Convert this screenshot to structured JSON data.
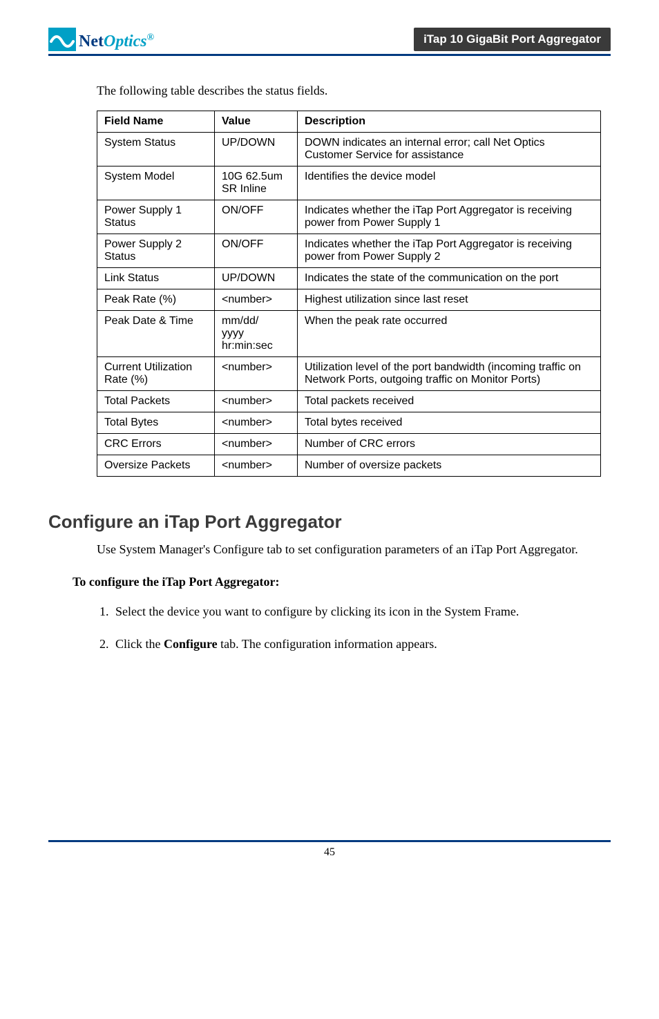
{
  "header": {
    "logo_net": "Net",
    "logo_optics": "Optics",
    "logo_reg": "®",
    "title_pill": "iTap 10 GigaBit Port Aggregator"
  },
  "intro_text": "The following table describes the status fields.",
  "table": {
    "headers": [
      "Field Name",
      "Value",
      "Description"
    ],
    "rows": [
      [
        "System Status",
        "UP/DOWN",
        "DOWN indicates an internal error; call Net Optics Customer Service for assistance"
      ],
      [
        "System Model",
        "10G 62.5um SR Inline",
        "Identifies the device model"
      ],
      [
        "Power Supply 1 Status",
        "ON/OFF",
        "Indicates whether the iTap Port Aggregator is receiving power from Power Supply 1"
      ],
      [
        "Power Supply 2 Status",
        "ON/OFF",
        "Indicates whether the iTap Port Aggregator is receiving power from Power Supply 2"
      ],
      [
        "Link Status",
        "UP/DOWN",
        "Indicates the state of the communication on the port"
      ],
      [
        "Peak Rate (%)",
        "<number>",
        "Highest utilization since last reset"
      ],
      [
        "Peak Date & Time",
        "mm/dd/\nyyyy\nhr:min:sec",
        "When the peak rate occurred"
      ],
      [
        "Current Utilization Rate (%)",
        "<number>",
        "Utilization level of the port bandwidth (incoming traffic on Network Ports, outgoing traffic on Monitor Ports)"
      ],
      [
        "Total Packets",
        "<number>",
        "Total packets received"
      ],
      [
        "Total Bytes",
        "<number>",
        "Total bytes received"
      ],
      [
        "CRC Errors",
        "<number>",
        "Number of CRC errors"
      ],
      [
        "Oversize Packets",
        "<number>",
        "Number of oversize packets"
      ]
    ]
  },
  "section": {
    "heading": "Configure an iTap Port Aggregator",
    "body": "Use System Manager's Configure tab to set configuration parameters of an iTap Port Aggregator.",
    "subhead": "To configure the iTap Port Aggregator:",
    "steps": [
      "Select the device you want to configure by clicking its icon in the System Frame.",
      "Click the <b>Configure</b> tab. The configuration information appears."
    ]
  },
  "page_number": "45"
}
